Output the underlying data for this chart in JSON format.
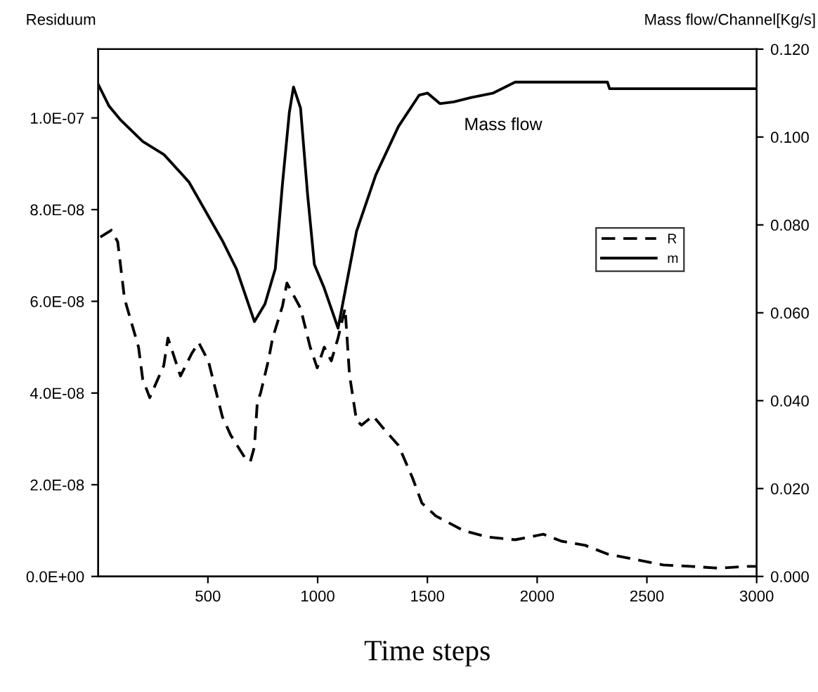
{
  "chart_data": {
    "type": "line",
    "xlabel": "Time steps",
    "ylabel": "Residuum",
    "y2label": "Mass flow/Channel[Kg/s]",
    "xlim": [
      0,
      3000
    ],
    "xticks": [
      500,
      1000,
      1500,
      2000,
      2500,
      3000
    ],
    "ylim": [
      0,
      1.15e-07
    ],
    "yticks": [
      {
        "value": 0,
        "label": "0.0E+00"
      },
      {
        "value": 2e-08,
        "label": "2.0E-08"
      },
      {
        "value": 4e-08,
        "label": "4.0E-08"
      },
      {
        "value": 6e-08,
        "label": "6.0E-08"
      },
      {
        "value": 8e-08,
        "label": "8.0E-08"
      },
      {
        "value": 1e-07,
        "label": "1.0E-07"
      }
    ],
    "y2lim": [
      0,
      0.12
    ],
    "y2ticks": [
      {
        "value": 0,
        "label": "0.000"
      },
      {
        "value": 0.02,
        "label": "0.020"
      },
      {
        "value": 0.04,
        "label": "0.040"
      },
      {
        "value": 0.06,
        "label": "0.060"
      },
      {
        "value": 0.08,
        "label": "0.080"
      },
      {
        "value": 0.1,
        "label": "0.100"
      },
      {
        "value": 0.12,
        "label": "0.120"
      }
    ],
    "legend": "right",
    "grid": false,
    "annotations": [
      "Mass flow"
    ],
    "series": [
      {
        "name": "R",
        "color": "#000000",
        "line_style": "dashed",
        "x": [
          10,
          60,
          89,
          120,
          184,
          203,
          235,
          299,
          318,
          375,
          426,
          458,
          502,
          566,
          604,
          667,
          693,
          712,
          725,
          740,
          775,
          795,
          840,
          860,
          922,
          966,
          998,
          1030,
          1062,
          1093,
          1125,
          1145,
          1177,
          1200,
          1252,
          1305,
          1368,
          1432,
          1475,
          1538,
          1665,
          1773,
          1900,
          2028,
          2110,
          2218,
          2320,
          2447,
          2575,
          2702,
          2829,
          2956,
          3000
        ],
        "values": [
          7.4e-08,
          7.55e-08,
          7.3e-08,
          6.06e-08,
          5e-08,
          4.3e-08,
          3.9e-08,
          4.6e-08,
          5.2e-08,
          4.37e-08,
          4.86e-08,
          5.1e-08,
          4.7e-08,
          3.48e-08,
          3.08e-08,
          2.6e-08,
          2.5e-08,
          2.83e-08,
          3.8e-08,
          4e-08,
          4.7e-08,
          5.2e-08,
          5.9e-08,
          6.4e-08,
          5.85e-08,
          5e-08,
          4.55e-08,
          5e-08,
          4.7e-08,
          5.2e-08,
          5.85e-08,
          4.4e-08,
          3.4e-08,
          3.3e-08,
          3.5e-08,
          3.2e-08,
          2.86e-08,
          2.15e-08,
          1.6e-08,
          1.32e-08,
          1e-08,
          8.6e-09,
          8e-09,
          9.2e-09,
          7.7e-09,
          6.8e-09,
          4.9e-09,
          3.7e-09,
          2.5e-09,
          2.2e-09,
          1.8e-09,
          2.2e-09,
          2.2e-09
        ]
      },
      {
        "name": "m",
        "color": "#000000",
        "line_style": "solid",
        "axis": "y2",
        "x": [
          0,
          50,
          100,
          203,
          300,
          413,
          565,
          630,
          712,
          760,
          807,
          840,
          871,
          890,
          922,
          954,
          985,
          1030,
          1093,
          1177,
          1265,
          1368,
          1462,
          1500,
          1557,
          1620,
          1700,
          1800,
          1900,
          2320,
          2330,
          3000
        ],
        "values": [
          0.112,
          0.107,
          0.104,
          0.099,
          0.096,
          0.0898,
          0.0765,
          0.07,
          0.058,
          0.062,
          0.07,
          0.0895,
          0.1056,
          0.1114,
          0.1066,
          0.087,
          0.071,
          0.0656,
          0.0565,
          0.0785,
          0.0914,
          0.1024,
          0.1095,
          0.11,
          0.1076,
          0.108,
          0.109,
          0.11,
          0.1125,
          0.1125,
          0.111,
          0.111
        ]
      }
    ]
  }
}
